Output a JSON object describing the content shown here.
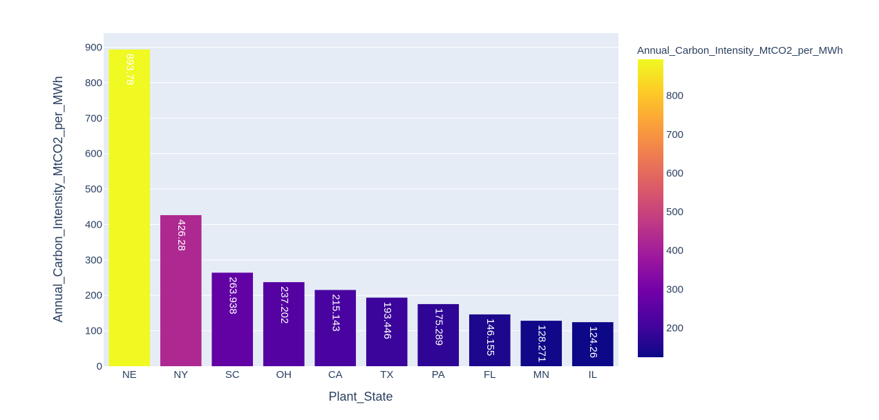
{
  "chart_data": {
    "type": "bar",
    "xlabel": "Plant_State",
    "ylabel": "Annual_Carbon_Intensity_MtCO2_per_MWh",
    "categories": [
      "NE",
      "NY",
      "SC",
      "OH",
      "CA",
      "TX",
      "PA",
      "FL",
      "MN",
      "IL"
    ],
    "values": [
      893.78,
      426.28,
      263.938,
      237.202,
      215.143,
      193.446,
      175.289,
      146.155,
      128.271,
      124.26
    ],
    "data_labels": [
      "893.78",
      "426.28",
      "263.938",
      "237.202",
      "215.143",
      "193.446",
      "175.289",
      "146.155",
      "128.271",
      "124.26"
    ],
    "ylim": [
      0,
      940
    ],
    "yticks": [
      0,
      100,
      200,
      300,
      400,
      500,
      600,
      700,
      800,
      900
    ],
    "grid": true,
    "colorbar": {
      "title": "Annual_Carbon_Intensity_MtCO2_per_MWh",
      "range": [
        124.26,
        893.78
      ],
      "ticks": [
        200,
        300,
        400,
        500,
        600,
        700,
        800
      ],
      "colorscale": [
        "#0d0887",
        "#46039f",
        "#7201a8",
        "#9c179e",
        "#bd3786",
        "#d8576b",
        "#ed7953",
        "#fb9f3a",
        "#fdca26",
        "#f0f921"
      ]
    },
    "colors": {
      "plot_bg": "#e5ecf6",
      "grid": "#ffffff",
      "text": "#2a3f5f"
    }
  }
}
